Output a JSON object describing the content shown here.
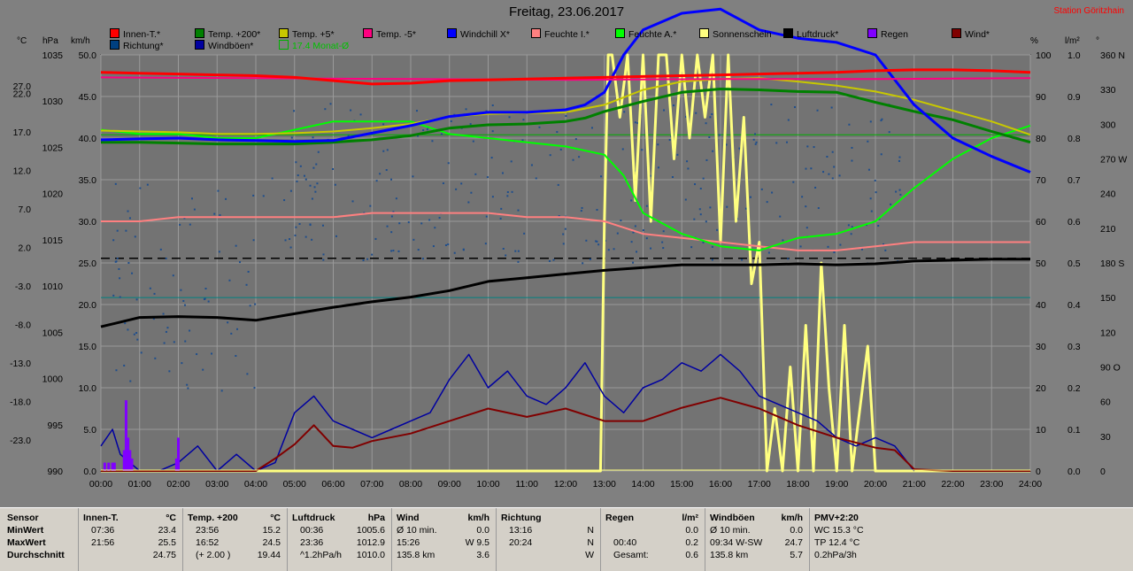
{
  "title": "Freitag, 23.06.2017",
  "station": "Station Göritzhain",
  "unit_labels": {
    "celsius": "°C",
    "hpa": "hPa",
    "kmh": "km/h",
    "percent": "%",
    "lm2": "l/m²",
    "deg": "°"
  },
  "legend": [
    {
      "name": "Innen-T.*",
      "color": "#ff0000"
    },
    {
      "name": "Temp. +200*",
      "color": "#008000"
    },
    {
      "name": "Temp. +5*",
      "color": "#c8c800"
    },
    {
      "name": "Temp. -5*",
      "color": "#ff0080"
    },
    {
      "name": "Windchill X*",
      "color": "#0000ff"
    },
    {
      "name": "Feuchte I.*",
      "color": "#ff8080"
    },
    {
      "name": "Feuchte A.*",
      "color": "#00ff00"
    },
    {
      "name": "Sonnenschein",
      "color": "#ffff80"
    },
    {
      "name": "Luftdruck*",
      "color": "#000000"
    },
    {
      "name": "Regen",
      "color": "#8000ff"
    },
    {
      "name": "Wind*",
      "color": "#800000"
    },
    {
      "name": "Richtung*",
      "color": "#004080"
    },
    {
      "name": "Windböen*",
      "color": "#0000a0"
    },
    {
      "name": "17.4 Monat-Ø",
      "color": "#00b000"
    }
  ],
  "chart_data": {
    "type": "line",
    "x_ticks": [
      "00:00",
      "01:00",
      "02:00",
      "03:00",
      "04:00",
      "05:00",
      "06:00",
      "07:00",
      "08:00",
      "09:00",
      "10:00",
      "11:00",
      "12:00",
      "13:00",
      "14:00",
      "15:00",
      "16:00",
      "17:00",
      "18:00",
      "19:00",
      "20:00",
      "21:00",
      "22:00",
      "23:00",
      "24:00"
    ],
    "axes": {
      "celsius": {
        "range": [
          -23.0,
          27.0
        ],
        "ticks": [
          "27.0",
          "22.0",
          "17.0",
          "12.0",
          "7.0",
          "2.0",
          "-3.0",
          "-8.0",
          "-13.0",
          "-18.0",
          "-23.0"
        ]
      },
      "hpa": {
        "range": [
          990,
          1035
        ],
        "ticks": [
          "1035",
          "1030",
          "1025",
          "1020",
          "1015",
          "1010",
          "1005",
          "1000",
          "995",
          "990"
        ]
      },
      "kmh": {
        "range": [
          0,
          50
        ],
        "ticks": [
          "50.0",
          "45.0",
          "40.0",
          "35.0",
          "30.0",
          "25.0",
          "20.0",
          "15.0",
          "10.0",
          "5.0",
          "0.0"
        ]
      },
      "percent": {
        "range": [
          0,
          100
        ],
        "ticks": [
          "100",
          "90",
          "80",
          "70",
          "60",
          "50",
          "40",
          "30",
          "20",
          "10",
          "0"
        ]
      },
      "lm2": {
        "range": [
          0,
          1.0
        ],
        "ticks": [
          "1.0",
          "0.9",
          "0.8",
          "0.7",
          "0.6",
          "0.5",
          "0.4",
          "0.3",
          "0.2",
          "0.1",
          "0.0"
        ]
      },
      "direction": {
        "range": [
          0,
          360
        ],
        "ticks": [
          "360 N",
          "330",
          "300",
          "270 W",
          "240",
          "210",
          "180 S",
          "150",
          "120",
          "90 O",
          "60",
          "30",
          "0"
        ]
      }
    },
    "grid": true,
    "series": [
      {
        "name": "Innen-T.*",
        "axis": "celsius",
        "x": [
          0,
          1,
          2,
          3,
          4,
          5,
          6,
          7,
          8,
          9,
          10,
          11,
          12,
          13,
          14,
          15,
          16,
          17,
          18,
          19,
          20,
          21,
          22,
          23,
          24
        ],
        "values": [
          24.9,
          24.8,
          24.7,
          24.6,
          24.5,
          24.3,
          23.9,
          23.5,
          23.6,
          23.9,
          24.0,
          24.1,
          24.2,
          24.3,
          24.4,
          24.5,
          24.6,
          24.7,
          24.8,
          24.9,
          25.1,
          25.2,
          25.2,
          25.1,
          24.9
        ]
      },
      {
        "name": "Temp. -5*",
        "axis": "celsius",
        "x": [
          0,
          4,
          8,
          12,
          16,
          20,
          24
        ],
        "values": [
          24.3,
          24.2,
          24.1,
          24.0,
          24.1,
          24.1,
          24.2
        ]
      },
      {
        "name": "Temp. +200*",
        "axis": "celsius",
        "x": [
          0,
          1,
          2,
          3,
          4,
          5,
          6,
          7,
          8,
          9,
          10,
          11,
          12,
          12.5,
          13,
          14,
          15,
          16,
          17,
          18,
          19,
          20,
          21,
          22,
          23,
          24
        ],
        "values": [
          16.5,
          16.5,
          16.4,
          16.3,
          16.3,
          16.3,
          16.5,
          16.8,
          17.3,
          18.2,
          18.6,
          18.7,
          19.0,
          19.4,
          20.2,
          21.4,
          22.5,
          22.9,
          22.8,
          22.6,
          22.5,
          21.3,
          20.2,
          19.2,
          17.8,
          16.5
        ]
      },
      {
        "name": "Temp. +5*",
        "axis": "celsius",
        "x": [
          0,
          1,
          2,
          3,
          4,
          5,
          6,
          7,
          8,
          9,
          10,
          11,
          12,
          13,
          14,
          15,
          16,
          17,
          18,
          19,
          20,
          21,
          22,
          23,
          24
        ],
        "values": [
          17.9,
          17.8,
          17.7,
          17.5,
          17.5,
          17.6,
          17.8,
          18.2,
          18.7,
          19.6,
          19.9,
          20.0,
          20.1,
          21.0,
          22.8,
          23.8,
          24.1,
          24.2,
          23.8,
          23.3,
          22.6,
          21.6,
          20.3,
          19.0,
          17.4
        ]
      },
      {
        "name": "Windchill X*",
        "axis": "celsius",
        "x": [
          0,
          1,
          2,
          3,
          4,
          5,
          6,
          7,
          8,
          9,
          10,
          11,
          12,
          12.5,
          13,
          13.5,
          14,
          15,
          16,
          17,
          18,
          19,
          20,
          21,
          22,
          23,
          24
        ],
        "values": [
          16.8,
          16.9,
          17.0,
          16.8,
          16.7,
          16.6,
          16.7,
          17.6,
          18.5,
          19.6,
          20.1,
          20.1,
          20.4,
          21.0,
          22.5,
          27.0,
          30.0,
          32.0,
          32.5,
          30.0,
          29.0,
          28.5,
          27.0,
          21.0,
          17.0,
          14.8,
          12.9
        ]
      },
      {
        "name": "Feuchte I.*",
        "axis": "percent",
        "x": [
          0,
          1,
          2,
          3,
          4,
          5,
          6,
          7,
          8,
          9,
          10,
          11,
          12,
          13,
          14,
          15,
          16,
          17,
          18,
          19,
          20,
          21,
          22,
          23,
          24
        ],
        "values": [
          60,
          60,
          61,
          61,
          61,
          61,
          61,
          62,
          62,
          62,
          62,
          61,
          61,
          60,
          57,
          56,
          55,
          54,
          53,
          53,
          54,
          55,
          55,
          55,
          55
        ]
      },
      {
        "name": "Feuchte A.*",
        "axis": "percent",
        "x": [
          0,
          1,
          2,
          3,
          4,
          5,
          6,
          7,
          8,
          9,
          10,
          11,
          12,
          13,
          13.5,
          14,
          15,
          16,
          17,
          18,
          19,
          20,
          21,
          22,
          23,
          24
        ],
        "values": [
          82,
          81,
          81,
          80,
          80,
          82,
          84,
          84,
          84,
          81,
          80,
          79,
          78,
          76,
          71,
          62,
          57,
          54,
          53,
          56,
          57,
          60,
          68,
          75,
          80,
          83
        ]
      },
      {
        "name": "Luftdruck*",
        "axis": "hpa",
        "x": [
          0,
          1,
          2,
          3,
          4,
          5,
          6,
          7,
          8,
          9,
          10,
          11,
          12,
          13,
          14,
          15,
          16,
          17,
          18,
          19,
          20,
          21,
          22,
          23,
          24
        ],
        "values": [
          1005.6,
          1006.6,
          1006.7,
          1006.6,
          1006.3,
          1007.0,
          1007.7,
          1008.3,
          1008.8,
          1009.5,
          1010.5,
          1010.9,
          1011.3,
          1011.7,
          1012.0,
          1012.3,
          1012.3,
          1012.3,
          1012.4,
          1012.3,
          1012.4,
          1012.7,
          1012.8,
          1012.9,
          1012.9
        ]
      },
      {
        "name": "Wind*",
        "axis": "kmh",
        "x": [
          0,
          1,
          2,
          3,
          4,
          4.5,
          5,
          5.5,
          6,
          6.5,
          7,
          8,
          9,
          10,
          11,
          12,
          13,
          14,
          15,
          16,
          17,
          18,
          19,
          20,
          20.5,
          21,
          22,
          23,
          24
        ],
        "values": [
          0,
          0,
          0,
          0,
          0,
          1.5,
          3.2,
          5.5,
          3.0,
          2.8,
          3.6,
          4.5,
          6.0,
          7.5,
          6.5,
          7.5,
          6.0,
          6.0,
          7.6,
          8.8,
          7.5,
          5.5,
          4.0,
          2.8,
          2.5,
          0.2,
          0,
          0,
          0
        ]
      },
      {
        "name": "Windböen*",
        "axis": "kmh",
        "x": [
          0,
          0.3,
          0.5,
          1,
          1.5,
          2,
          2.5,
          3,
          3.5,
          4,
          4.5,
          5,
          5.5,
          6,
          6.5,
          7,
          7.5,
          8,
          8.5,
          9,
          9.5,
          10,
          10.5,
          11,
          11.5,
          12,
          12.5,
          13,
          13.5,
          14,
          14.5,
          15,
          15.5,
          16,
          16.5,
          17,
          17.5,
          18,
          18.5,
          19,
          19.5,
          20,
          20.5,
          21
        ],
        "values": [
          3,
          5,
          2,
          0,
          0,
          1,
          3,
          0,
          2,
          0,
          1,
          7,
          9,
          6,
          5,
          4,
          5,
          6,
          7,
          11,
          14,
          10,
          12,
          9,
          8,
          10,
          13,
          9,
          7,
          10,
          11,
          13,
          12,
          14,
          12,
          9,
          8,
          7,
          6,
          4,
          3,
          4,
          3,
          0
        ]
      },
      {
        "name": "Sonnenschein",
        "axis": "lm2",
        "x": [
          0,
          12.9,
          13.0,
          13.1,
          13.2,
          13.4,
          13.6,
          13.8,
          14.0,
          14.2,
          14.4,
          14.6,
          14.8,
          15.0,
          15.2,
          15.4,
          15.6,
          15.8,
          16.0,
          16.2,
          16.4,
          16.6,
          16.8,
          17.0,
          17.2,
          17.4,
          17.6,
          17.8,
          18.0,
          18.2,
          18.4,
          18.6,
          18.8,
          19.0,
          19.2,
          19.4,
          19.6,
          19.8,
          20.0,
          24
        ],
        "values": [
          0,
          0,
          0.6,
          1.0,
          1.0,
          0.85,
          1.0,
          0.65,
          1.0,
          0.6,
          1.0,
          1.0,
          0.75,
          1.0,
          0.8,
          1.0,
          0.85,
          1.0,
          0.55,
          1.0,
          0.6,
          0.85,
          0.45,
          0.55,
          0.0,
          0.15,
          0.0,
          0.25,
          0.0,
          0.35,
          0.0,
          0.5,
          0.2,
          0.0,
          0.35,
          0.0,
          0.15,
          0.3,
          0.0,
          0
        ]
      },
      {
        "name": "Regen",
        "axis": "lm2",
        "x": [
          0.1,
          0.2,
          0.3,
          0.35,
          0.6,
          0.65,
          0.7,
          0.75,
          0.8,
          1.95,
          2.0
        ],
        "values": [
          0.02,
          0.02,
          0.02,
          0.02,
          0.05,
          0.17,
          0.08,
          0.05,
          0.03,
          0.03,
          0.08
        ]
      }
    ],
    "reference_lines": [
      {
        "name": "17.4 Monat-Ø",
        "axis": "celsius",
        "value": 17.4,
        "color": "#00b000"
      },
      {
        "name": "Luftdruck-Mittel",
        "axis": "hpa",
        "value": 1013.0,
        "color": "#000000",
        "dash": true
      },
      {
        "name": "Windrichtung-Mittel",
        "axis": "direction",
        "value": 150,
        "color": "#008080"
      }
    ],
    "direction_points_density": 400
  },
  "table": {
    "row_labels": [
      "Sensor",
      "MinWert",
      "MaxWert",
      "Durchschnitt"
    ],
    "blocks": [
      {
        "title": "Innen-T.",
        "unit": "°C",
        "rows": [
          [
            "07:36",
            "23.4"
          ],
          [
            "21:56",
            "25.5"
          ],
          [
            "",
            "24.75"
          ]
        ]
      },
      {
        "title": "Temp. +200",
        "unit": "°C",
        "rows": [
          [
            "23:56",
            "15.2"
          ],
          [
            "16:52",
            "24.5"
          ],
          [
            "(+ 2.00 )",
            "19.44"
          ]
        ]
      },
      {
        "title": "Luftdruck",
        "unit": "hPa",
        "rows": [
          [
            "00:36",
            "1005.6"
          ],
          [
            "23:36",
            "1012.9"
          ],
          [
            "^1.2hPa/h",
            "1010.0"
          ]
        ]
      },
      {
        "title": "Wind",
        "unit": "km/h",
        "rows": [
          [
            "Ø 10 min.",
            "0.0"
          ],
          [
            "15:26",
            "W 9.5"
          ],
          [
            "135.8 km",
            "3.6"
          ]
        ]
      },
      {
        "title": "Richtung",
        "unit": "",
        "rows": [
          [
            "13:16",
            "N"
          ],
          [
            "20:24",
            "N"
          ],
          [
            "",
            "W"
          ]
        ]
      },
      {
        "title": "Regen",
        "unit": "l/m²",
        "rows": [
          [
            "",
            "0.0"
          ],
          [
            "00:40",
            "0.2"
          ],
          [
            "Gesamt:",
            "0.6"
          ]
        ]
      },
      {
        "title": "Windböen",
        "unit": "km/h",
        "rows": [
          [
            "Ø 10 min.",
            "0.0"
          ],
          [
            "09:34  W-SW",
            "24.7"
          ],
          [
            "135.8 km",
            "5.7"
          ]
        ]
      },
      {
        "title": "PMV+2:20",
        "unit": "",
        "rows": [
          [
            "WC 15.3 °C",
            ""
          ],
          [
            "TP 12.4 °C",
            ""
          ],
          [
            "0.2hPa/3h",
            ""
          ]
        ]
      }
    ]
  }
}
